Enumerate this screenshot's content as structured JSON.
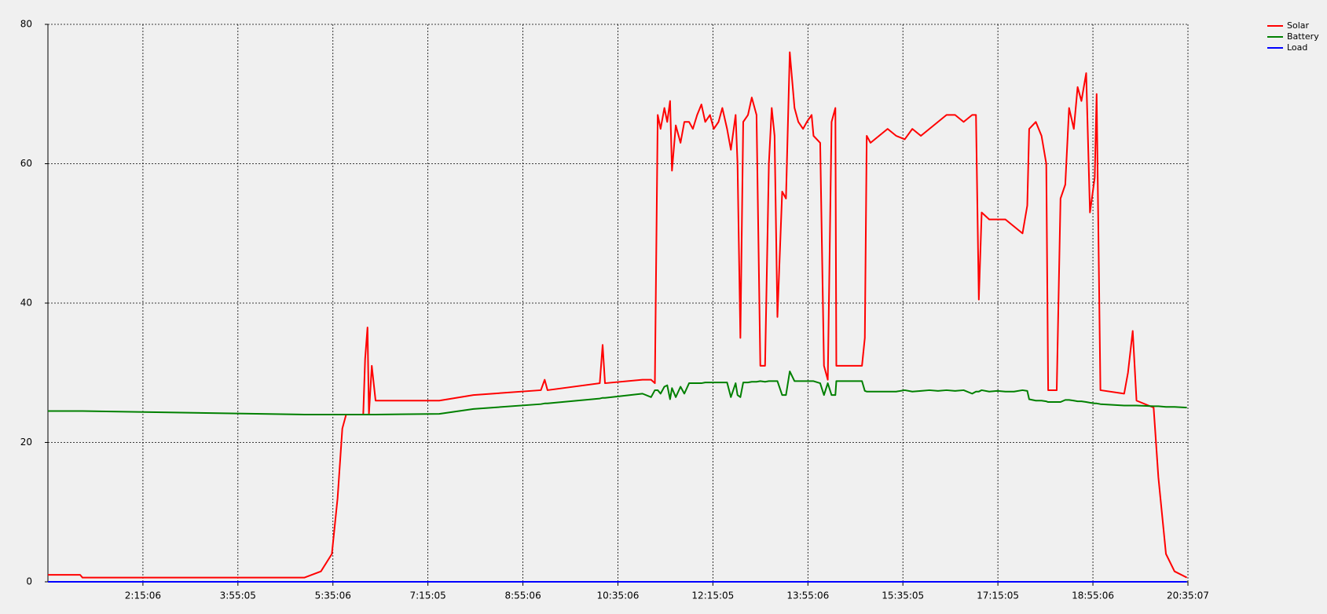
{
  "chart_data": {
    "type": "line",
    "x": [
      35.1,
      69,
      71.5,
      305,
      322.5,
      334,
      340,
      345,
      349,
      367,
      369,
      371.5,
      373,
      376,
      380,
      447,
      483,
      554,
      558,
      561,
      616,
      619,
      621.5,
      661,
      670,
      674,
      677,
      680,
      684,
      687,
      690,
      692,
      696,
      701,
      705,
      710,
      714,
      718.5,
      723,
      727,
      732,
      736,
      741,
      745,
      750,
      754,
      759,
      761,
      764,
      767,
      772,
      776,
      781,
      785,
      790,
      794,
      797,
      800,
      803,
      808,
      812,
      816,
      821,
      825,
      830,
      834,
      839,
      841,
      848,
      852,
      856,
      860,
      864,
      865,
      870,
      892,
      895,
      897,
      901,
      910,
      919,
      928,
      937,
      945,
      954,
      963,
      972,
      981,
      990,
      999,
      1008,
      1012,
      1015,
      1018,
      1026,
      1034,
      1043,
      1052,
      1061,
      1066,
      1068,
      1075,
      1081,
      1086,
      1088,
      1097,
      1101,
      1106,
      1110,
      1115,
      1119,
      1123,
      1128,
      1132,
      1137,
      1139,
      1143,
      1168,
      1172,
      1177,
      1181,
      1199,
      1204,
      1212,
      1221,
      1234
    ],
    "series": [
      {
        "name": "Solar",
        "color": "#ff0000",
        "values": [
          1.0,
          1.0,
          0.6,
          0.6,
          1.5,
          4,
          12,
          22,
          24,
          24,
          32,
          36.5,
          24,
          31,
          26,
          26,
          26.8,
          27.5,
          29,
          27.5,
          28.5,
          34,
          28.5,
          29,
          29,
          28.5,
          67,
          65,
          68,
          66,
          69,
          59,
          65.5,
          63,
          66,
          66,
          65,
          67,
          68.5,
          66,
          67,
          65,
          66,
          68,
          65,
          62,
          67,
          60,
          35,
          66,
          67,
          69.5,
          67,
          31,
          31,
          60,
          68,
          64,
          38,
          56,
          55,
          76,
          68,
          66,
          65,
          66,
          67,
          64,
          63,
          31,
          29,
          66,
          68,
          31,
          31,
          31,
          35,
          64,
          63,
          64,
          65,
          64,
          63.5,
          65,
          64,
          65,
          66,
          67,
          67,
          66,
          67,
          67,
          40.5,
          53,
          52,
          52,
          52,
          51,
          50,
          54,
          65,
          66,
          64,
          60,
          27.5,
          27.5,
          55,
          57,
          68,
          65,
          71,
          69,
          73,
          53,
          58,
          70,
          27.5,
          27,
          30,
          36,
          26,
          25,
          15,
          4,
          1.5,
          0.6
        ]
      },
      {
        "name": "Battery",
        "color": "#008000",
        "values": [
          24.5,
          24.5,
          24.5,
          24.0,
          24.0,
          24.0,
          24.0,
          24.0,
          24.0,
          24.0,
          24.0,
          24.0,
          24.0,
          24.0,
          24.0,
          24.1,
          24.8,
          25.5,
          25.6,
          25.6,
          26.3,
          26.4,
          26.4,
          27,
          26.5,
          27.5,
          27.5,
          27,
          28,
          28.2,
          26.2,
          27.8,
          26.5,
          28,
          27,
          28.5,
          28.5,
          28.5,
          28.5,
          28.6,
          28.6,
          28.6,
          28.6,
          28.6,
          28.6,
          26.5,
          28.5,
          26.8,
          26.5,
          28.6,
          28.6,
          28.7,
          28.7,
          28.8,
          28.7,
          28.8,
          28.8,
          28.8,
          28.8,
          26.8,
          26.8,
          30.2,
          28.8,
          28.8,
          28.8,
          28.8,
          28.8,
          28.8,
          28.5,
          26.8,
          28.5,
          26.8,
          26.8,
          28.8,
          28.8,
          28.8,
          27.4,
          27.3,
          27.3,
          27.3,
          27.3,
          27.3,
          27.5,
          27.3,
          27.4,
          27.5,
          27.4,
          27.5,
          27.4,
          27.5,
          27.0,
          27.3,
          27.3,
          27.5,
          27.3,
          27.4,
          27.3,
          27.3,
          27.5,
          27.4,
          26.2,
          26,
          26,
          25.9,
          25.8,
          25.8,
          25.8,
          26.1,
          26.1,
          26,
          25.9,
          25.9,
          25.8,
          25.7,
          25.6,
          25.6,
          25.5,
          25.3,
          25.3,
          25.3,
          25.3,
          25.2,
          25.2,
          25.1,
          25.1,
          25
        ]
      },
      {
        "name": "Load",
        "color": "#0000ff",
        "values": [
          0,
          0,
          0,
          0,
          0,
          0,
          0,
          0,
          0,
          0,
          0,
          0,
          0,
          0,
          0,
          0,
          0,
          0,
          0,
          0,
          0,
          0,
          0,
          0,
          0,
          0,
          0,
          0,
          0,
          0,
          0,
          0,
          0,
          0,
          0,
          0,
          0,
          0,
          0,
          0,
          0,
          0,
          0,
          0,
          0,
          0,
          0,
          0,
          0,
          0,
          0,
          0,
          0,
          0,
          0,
          0,
          0,
          0,
          0,
          0,
          0,
          0,
          0,
          0,
          0,
          0,
          0,
          0,
          0,
          0,
          0,
          0,
          0,
          0,
          0,
          0,
          0,
          0,
          0,
          0,
          0,
          0,
          0,
          0,
          0,
          0,
          0,
          0,
          0,
          0,
          0,
          0,
          0,
          0,
          0,
          0,
          0,
          0,
          0,
          0,
          0,
          0,
          0,
          0,
          0,
          0,
          0,
          0,
          0,
          0,
          0,
          0,
          0,
          0,
          0,
          0,
          0,
          0,
          0,
          0,
          0,
          0,
          0,
          0,
          0,
          0
        ]
      }
    ],
    "xlim": [
      35.1,
      1235.12
    ],
    "xticks": [
      {
        "value": 135.1,
        "label": "2:15:06"
      },
      {
        "value": 235.08,
        "label": "3:55:05"
      },
      {
        "value": 335.1,
        "label": "5:35:06"
      },
      {
        "value": 435.08,
        "label": "7:15:05"
      },
      {
        "value": 535.1,
        "label": "8:55:06"
      },
      {
        "value": 635.1,
        "label": "10:35:06"
      },
      {
        "value": 735.08,
        "label": "12:15:05"
      },
      {
        "value": 835.1,
        "label": "13:55:06"
      },
      {
        "value": 935.08,
        "label": "15:35:05"
      },
      {
        "value": 1035.08,
        "label": "17:15:05"
      },
      {
        "value": 1135.1,
        "label": "18:55:06"
      },
      {
        "value": 1235.12,
        "label": "20:35:07"
      }
    ],
    "ylim": [
      0,
      80
    ],
    "yticks": [
      0,
      20,
      40,
      60,
      80
    ],
    "grid": true,
    "legend": "top-right"
  }
}
